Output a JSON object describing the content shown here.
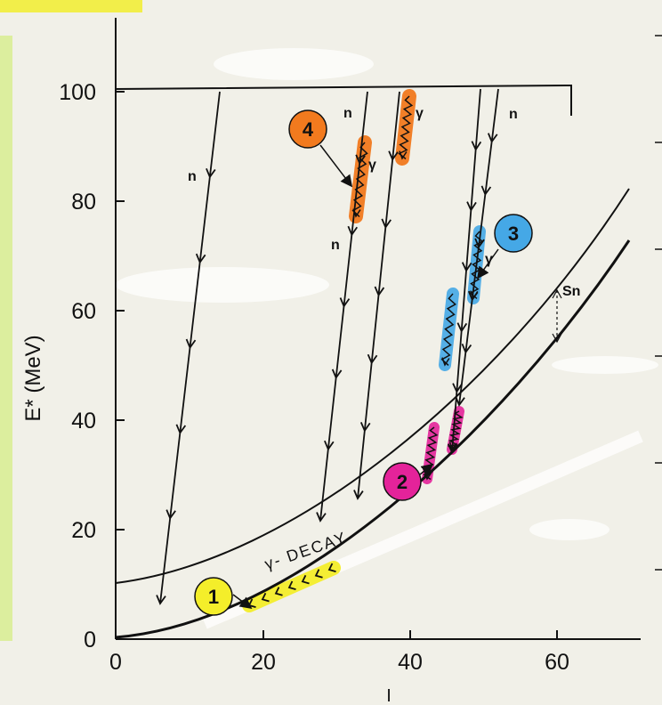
{
  "chart_data": {
    "type": "diagram",
    "xlabel": "I",
    "ylabel": "E* (MeV)",
    "xlim": [
      0,
      70
    ],
    "ylim": [
      0,
      100
    ],
    "x_ticks": [
      "0",
      "20",
      "40",
      "60"
    ],
    "y_ticks": [
      "0",
      "20",
      "40",
      "60",
      "80",
      "100"
    ],
    "yrast_label": "γ- DECAY",
    "separation_label": "Sn",
    "neutron_label": "n",
    "gamma_label": "γ",
    "highlight_colors": {
      "yellow": "#f4ee2a",
      "magenta": "#e4239a",
      "blue": "#45a8e6",
      "orange": "#f27a1e"
    },
    "badges": [
      {
        "id": "1",
        "color": "#f4ee2a"
      },
      {
        "id": "2",
        "color": "#e4239a"
      },
      {
        "id": "3",
        "color": "#45a8e6"
      },
      {
        "id": "4",
        "color": "#f27a1e"
      }
    ]
  }
}
